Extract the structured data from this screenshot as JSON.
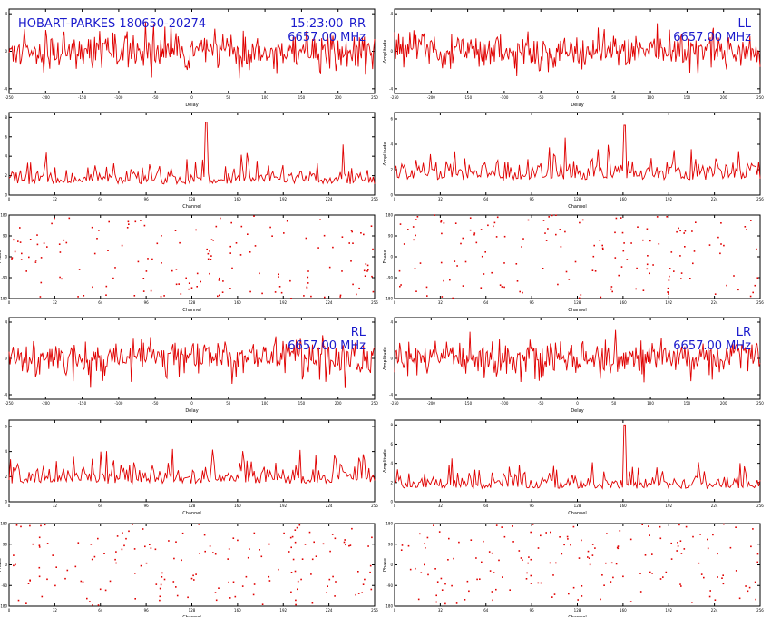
{
  "header": {
    "baseline": "HOBART-PARKES 180650-20274",
    "time": "15:23:00"
  },
  "colors": {
    "trace": "#e00000",
    "text": "#1a1acc",
    "frame": "#000000"
  },
  "chart_data": [
    {
      "id": "rr-delay",
      "type": "line",
      "pol": "RR",
      "freq": "6657.00 MHz",
      "xlabel": "Delay",
      "ylabel": "",
      "ylim": [
        -4.5,
        4.5
      ],
      "yticks": [
        "4",
        "0",
        "-4"
      ],
      "npoints": 360,
      "seed": 11,
      "mean": 0,
      "sd": 1.0,
      "xticks": [
        "-250",
        "-200",
        "-150",
        "-100",
        "-50",
        "0",
        "50",
        "100",
        "150",
        "200",
        "250"
      ]
    },
    {
      "id": "ll-delay",
      "type": "line",
      "pol": "LL",
      "freq": "6657.00 MHz",
      "xlabel": "Delay",
      "ylabel": "Amplitude",
      "ylim": [
        -4.5,
        4.5
      ],
      "yticks": [
        "4",
        "0",
        "-4"
      ],
      "npoints": 360,
      "seed": 22,
      "mean": 0,
      "sd": 1.0,
      "xticks": [
        "-250",
        "-200",
        "-150",
        "-100",
        "-50",
        "0",
        "50",
        "100",
        "150",
        "200",
        "250"
      ]
    },
    {
      "id": "rr-channel",
      "type": "line",
      "xlabel": "Channel",
      "ylabel": "",
      "ylim": [
        0,
        8.5
      ],
      "yticks": [
        "8",
        "6",
        "4",
        "2",
        "0"
      ],
      "npoints": 256,
      "seed": 33,
      "mean": 1.9,
      "sd": 0.9,
      "spike": {
        "at": 0.54,
        "value": 7.5
      },
      "xticks": [
        "0",
        "32",
        "64",
        "96",
        "128",
        "160",
        "192",
        "224",
        "256"
      ]
    },
    {
      "id": "ll-channel",
      "type": "line",
      "xlabel": "Channel",
      "ylabel": "Amplitude",
      "ylim": [
        0,
        6.5
      ],
      "yticks": [
        "6",
        "4",
        "2",
        "0"
      ],
      "npoints": 256,
      "seed": 44,
      "mean": 2.0,
      "sd": 0.8,
      "spike": {
        "at": 0.63,
        "value": 5.5
      },
      "xticks": [
        "0",
        "32",
        "64",
        "96",
        "128",
        "160",
        "192",
        "224",
        "256"
      ]
    },
    {
      "id": "rr-phase",
      "type": "scatter",
      "xlabel": "Channel",
      "ylabel": "Phase",
      "ylim": [
        -180,
        180
      ],
      "yticks": [
        "180",
        "90",
        "0",
        "-90",
        "-180"
      ],
      "npoints": 160,
      "seed": 55,
      "xticks": [
        "0",
        "32",
        "64",
        "96",
        "128",
        "160",
        "192",
        "224",
        "256"
      ]
    },
    {
      "id": "ll-phase",
      "type": "scatter",
      "xlabel": "Channel",
      "ylabel": "Phase",
      "ylim": [
        -180,
        180
      ],
      "yticks": [
        "180",
        "90",
        "0",
        "-90",
        "-180"
      ],
      "npoints": 160,
      "seed": 66,
      "xticks": [
        "0",
        "32",
        "64",
        "96",
        "128",
        "160",
        "192",
        "224",
        "256"
      ]
    },
    {
      "id": "rl-delay",
      "type": "line",
      "pol": "RL",
      "freq": "6657.00 MHz",
      "xlabel": "Delay",
      "ylabel": "",
      "ylim": [
        -4.5,
        4.5
      ],
      "yticks": [
        "4",
        "0",
        "-4"
      ],
      "npoints": 360,
      "seed": 77,
      "mean": 0,
      "sd": 1.0,
      "xticks": [
        "-250",
        "-200",
        "-150",
        "-100",
        "-50",
        "0",
        "50",
        "100",
        "150",
        "200",
        "250"
      ]
    },
    {
      "id": "lr-delay",
      "type": "line",
      "pol": "LR",
      "freq": "6657.00 MHz",
      "xlabel": "Delay",
      "ylabel": "Amplitude",
      "ylim": [
        -4.5,
        4.5
      ],
      "yticks": [
        "4",
        "0",
        "-4"
      ],
      "npoints": 360,
      "seed": 88,
      "mean": 0,
      "sd": 1.0,
      "xticks": [
        "-250",
        "-200",
        "-150",
        "-100",
        "-50",
        "0",
        "50",
        "100",
        "150",
        "200",
        "250"
      ]
    },
    {
      "id": "rl-channel",
      "type": "line",
      "xlabel": "Channel",
      "ylabel": "",
      "ylim": [
        0,
        6.5
      ],
      "yticks": [
        "6",
        "4",
        "2",
        "0"
      ],
      "npoints": 256,
      "seed": 99,
      "mean": 2.4,
      "sd": 0.9,
      "xticks": [
        "0",
        "32",
        "64",
        "96",
        "128",
        "160",
        "192",
        "224",
        "256"
      ]
    },
    {
      "id": "lr-channel",
      "type": "line",
      "xlabel": "Channel",
      "ylabel": "Amplitude",
      "ylim": [
        0,
        8.5
      ],
      "yticks": [
        "8",
        "6",
        "4",
        "2",
        "0"
      ],
      "npoints": 256,
      "seed": 111,
      "mean": 2.3,
      "sd": 0.8,
      "spike": {
        "at": 0.63,
        "value": 8.0
      },
      "xticks": [
        "0",
        "32",
        "64",
        "96",
        "128",
        "160",
        "192",
        "224",
        "256"
      ]
    },
    {
      "id": "rl-phase",
      "type": "scatter",
      "xlabel": "Channel",
      "ylabel": "Phase",
      "ylim": [
        -180,
        180
      ],
      "yticks": [
        "180",
        "90",
        "0",
        "-90",
        "-180"
      ],
      "npoints": 170,
      "seed": 122,
      "xticks": [
        "0",
        "32",
        "64",
        "96",
        "128",
        "160",
        "192",
        "224",
        "256"
      ]
    },
    {
      "id": "lr-phase",
      "type": "scatter",
      "xlabel": "Channel",
      "ylabel": "Phase",
      "ylim": [
        -180,
        180
      ],
      "yticks": [
        "180",
        "90",
        "0",
        "-90",
        "-180"
      ],
      "npoints": 170,
      "seed": 133,
      "xticks": [
        "0",
        "32",
        "64",
        "96",
        "128",
        "160",
        "192",
        "224",
        "256"
      ]
    }
  ]
}
